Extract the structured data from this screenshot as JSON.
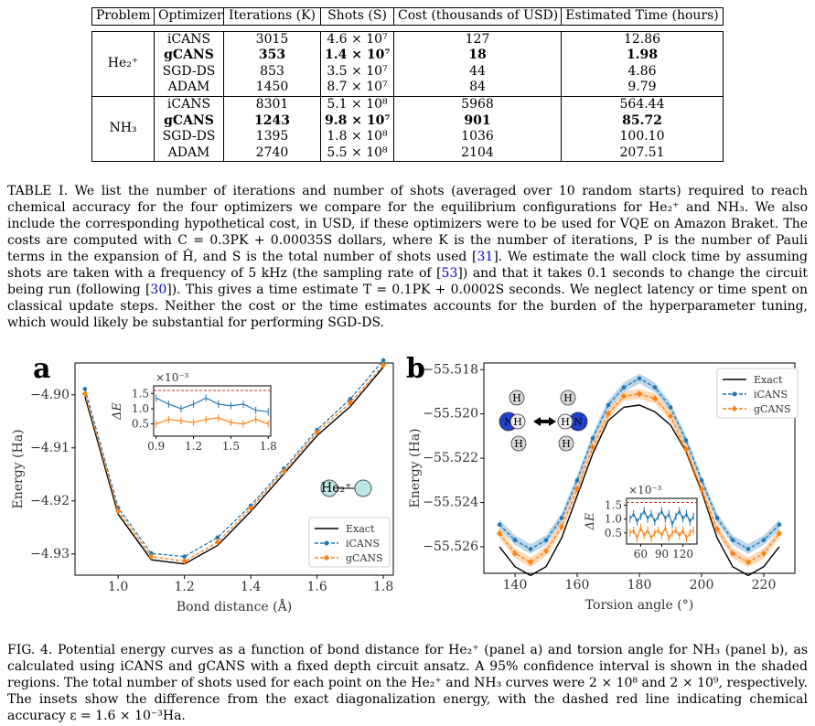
{
  "table": {
    "headers": [
      "Problem",
      "Optimizer",
      "Iterations (K)",
      "Shots (S)",
      "Cost (thousands of USD)",
      "Estimated Time (hours)"
    ],
    "groups": [
      {
        "problem": "He₂⁺",
        "rows": [
          {
            "optimizer": "iCANS",
            "iterations": "3015",
            "shots": "4.6 × 10⁷",
            "cost": "127",
            "time": "12.86",
            "bold": false
          },
          {
            "optimizer": "gCANS",
            "iterations": "353",
            "shots": "1.4 × 10⁷",
            "cost": "18",
            "time": "1.98",
            "bold": true
          },
          {
            "optimizer": "SGD-DS",
            "iterations": "853",
            "shots": "3.5 × 10⁷",
            "cost": "44",
            "time": "4.86",
            "bold": false
          },
          {
            "optimizer": "ADAM",
            "iterations": "1450",
            "shots": "8.7 × 10⁷",
            "cost": "84",
            "time": "9.79",
            "bold": false
          }
        ]
      },
      {
        "problem": "NH₃",
        "rows": [
          {
            "optimizer": "iCANS",
            "iterations": "8301",
            "shots": "5.1 × 10⁸",
            "cost": "5968",
            "time": "564.44",
            "bold": false
          },
          {
            "optimizer": "gCANS",
            "iterations": "1243",
            "shots": "9.8 × 10⁷",
            "cost": "901",
            "time": "85.72",
            "bold": true
          },
          {
            "optimizer": "SGD-DS",
            "iterations": "1395",
            "shots": "1.8 × 10⁸",
            "cost": "1036",
            "time": "100.10",
            "bold": false
          },
          {
            "optimizer": "ADAM",
            "iterations": "2740",
            "shots": "5.5 × 10⁸",
            "cost": "2104",
            "time": "207.51",
            "bold": false
          }
        ]
      }
    ]
  },
  "caption_table": {
    "p1": "TABLE I. We list the number of iterations and number of shots (averaged over 10 random starts) required to reach chemical accuracy for the four optimizers we compare for the equilibrium configurations for He₂⁺ and NH₃. We also include the corresponding hypothetical cost, in USD, if these optimizers were to be used for VQE on Amazon Braket. The costs are computed with C = 0.3PK + 0.00035S dollars, where K is the number of iterations, P is the number of Pauli terms in the expansion of Ĥ, and S is the total number of shots used [",
    "ref1": "31",
    "p2": "]. We estimate the wall clock time by assuming shots are taken with a frequency of 5 kHz (the sampling rate of [",
    "ref2": "53",
    "p3": "]) and that it takes 0.1 seconds to change the circuit being run (following [",
    "ref3": "30",
    "p4": "]). This gives a time estimate T = 0.1PK + 0.0002S seconds. We neglect latency or time spent on classical update steps. Neither the cost or the time estimates accounts for the burden of the hyperparameter tuning, which would likely be substantial for performing SGD-DS."
  },
  "caption_figure": "FIG. 4. Potential energy curves as a function of bond distance for He₂⁺ (panel a) and torsion angle for NH₃ (panel b), as calculated using iCANS and gCANS with a fixed depth circuit ansatz. A 95% confidence interval is shown in the shaded regions. The total number of shots used for each point on the He₂⁺ and NH₃ curves were 2 × 10⁸ and 2 × 10⁹, respectively. The insets show the difference from the exact diagonalization energy, with the dashed red line indicating chemical accuracy ε = 1.6 × 10⁻³Ha.",
  "colors": {
    "exact": "#000000",
    "icans": "#1f77b4",
    "gcans": "#ff7f0e",
    "chem_acc": "#d62728"
  },
  "chart_data": [
    {
      "panel_label": "a",
      "type": "line",
      "xlabel": "Bond distance (Å)",
      "ylabel": "Energy (Ha)",
      "xlim": [
        0.87,
        1.83
      ],
      "ylim": [
        -4.934,
        -4.894
      ],
      "xticks": [
        1.0,
        1.2,
        1.4,
        1.6,
        1.8
      ],
      "xtick_labels": [
        "1.0",
        "1.2",
        "1.4",
        "1.6",
        "1.8"
      ],
      "yticks": [
        -4.93,
        -4.92,
        -4.91,
        -4.9
      ],
      "ytick_labels": [
        "−4.93",
        "−4.92",
        "−4.91",
        "−4.90"
      ],
      "legend": "bottom-right",
      "legend_labels": [
        "Exact",
        "iCANS",
        "gCANS"
      ],
      "molecule_label": "He₂⁺",
      "x": [
        0.9,
        1.0,
        1.1,
        1.2,
        1.3,
        1.4,
        1.5,
        1.6,
        1.7,
        1.8
      ],
      "series": [
        {
          "name": "Exact",
          "values": [
            -4.9003,
            -4.9225,
            -4.9311,
            -4.9319,
            -4.9284,
            -4.922,
            -4.9149,
            -4.9077,
            -4.9022,
            -4.8948
          ]
        },
        {
          "name": "iCANS",
          "values": [
            -4.8989,
            -4.9213,
            -4.9299,
            -4.9305,
            -4.9269,
            -4.9209,
            -4.9139,
            -4.9066,
            -4.9008,
            -4.8935
          ]
        },
        {
          "name": "gCANS",
          "values": [
            -4.8998,
            -4.9219,
            -4.9305,
            -4.9314,
            -4.9278,
            -4.9214,
            -4.9144,
            -4.9071,
            -4.9015,
            -4.8944
          ]
        }
      ],
      "inset": {
        "ylabel": "ΔE",
        "scale_label": "×10⁻³",
        "xlim": [
          0.88,
          1.82
        ],
        "ylim": [
          0.1,
          1.75
        ],
        "xticks": [
          0.9,
          1.2,
          1.5,
          1.8
        ],
        "xtick_labels": [
          "0.9",
          "1.2",
          "1.5",
          "1.8"
        ],
        "yticks": [
          0.5,
          1.0,
          1.5
        ],
        "ytick_labels": [
          "0.5",
          "1.0",
          "1.5"
        ],
        "chem_acc": 1.6,
        "x": [
          0.9,
          1.0,
          1.1,
          1.2,
          1.3,
          1.4,
          1.5,
          1.6,
          1.7,
          1.8
        ],
        "series": [
          {
            "name": "iCANS",
            "values": [
              1.35,
              1.15,
              1.0,
              1.15,
              1.35,
              1.15,
              1.1,
              1.15,
              0.95,
              0.9
            ]
          },
          {
            "name": "gCANS",
            "values": [
              0.5,
              0.65,
              0.6,
              0.55,
              0.65,
              0.7,
              0.55,
              0.5,
              0.65,
              0.5
            ]
          }
        ]
      }
    },
    {
      "panel_label": "b",
      "type": "line",
      "xlabel": "Torsion angle (°)",
      "ylabel": "Energy (Ha)",
      "xlim": [
        130,
        230
      ],
      "ylim": [
        -55.5272,
        -55.5177
      ],
      "xticks": [
        140,
        160,
        180,
        200,
        220
      ],
      "xtick_labels": [
        "140",
        "160",
        "180",
        "200",
        "220"
      ],
      "yticks": [
        -55.526,
        -55.524,
        -55.522,
        -55.52,
        -55.518
      ],
      "ytick_labels": [
        "−55.526",
        "−55.524",
        "−55.522",
        "−55.520",
        "−55.518"
      ],
      "legend": "top-right",
      "legend_labels": [
        "Exact",
        "iCANS",
        "gCANS"
      ],
      "atom_labels": [
        "H",
        "N"
      ],
      "x": [
        135,
        140,
        145,
        150,
        155,
        160,
        165,
        170,
        175,
        180,
        185,
        190,
        195,
        200,
        205,
        210,
        215,
        220,
        225
      ],
      "series": [
        {
          "name": "Exact",
          "values": [
            -55.526,
            -55.5269,
            -55.5273,
            -55.5269,
            -55.5256,
            -55.5237,
            -55.5218,
            -55.5203,
            -55.5197,
            -55.5196,
            -55.5199,
            -55.5205,
            -55.5217,
            -55.5235,
            -55.5256,
            -55.5269,
            -55.5273,
            -55.5269,
            -55.526
          ]
        },
        {
          "name": "iCANS",
          "values": [
            -55.525,
            -55.5257,
            -55.5261,
            -55.5257,
            -55.5247,
            -55.523,
            -55.5211,
            -55.5196,
            -55.5188,
            -55.5184,
            -55.5188,
            -55.5197,
            -55.5212,
            -55.523,
            -55.5247,
            -55.5257,
            -55.5261,
            -55.5257,
            -55.525
          ]
        },
        {
          "name": "gCANS",
          "values": [
            -55.5254,
            -55.5263,
            -55.5267,
            -55.5262,
            -55.5251,
            -55.5234,
            -55.5215,
            -55.52,
            -55.5192,
            -55.5191,
            -55.5193,
            -55.5201,
            -55.5216,
            -55.5234,
            -55.5252,
            -55.5263,
            -55.5267,
            -55.5263,
            -55.5254
          ]
        }
      ],
      "inset": {
        "ylabel": "ΔE",
        "scale_label": "×10⁻³",
        "xlim": [
          40,
          140
        ],
        "ylim": [
          0.1,
          1.75
        ],
        "xticks": [
          60,
          90,
          120
        ],
        "xtick_labels": [
          "60",
          "90",
          "120"
        ],
        "yticks": [
          0.5,
          1.0,
          1.5
        ],
        "ytick_labels": [
          "0.5",
          "1.0",
          "1.5"
        ],
        "chem_acc": 1.6,
        "x": [
          45,
          50,
          55,
          60,
          65,
          70,
          75,
          80,
          85,
          90,
          95,
          100,
          105,
          110,
          115,
          120,
          125,
          130,
          135
        ],
        "series": [
          {
            "name": "iCANS",
            "values": [
              1.0,
              1.2,
              0.9,
              1.1,
              1.3,
              1.0,
              1.2,
              0.9,
              1.1,
              1.3,
              1.0,
              1.2,
              0.8,
              1.1,
              1.3,
              1.0,
              1.2,
              0.9,
              1.1
            ]
          },
          {
            "name": "gCANS",
            "values": [
              0.5,
              0.6,
              0.3,
              0.7,
              0.4,
              0.6,
              0.3,
              0.5,
              0.6,
              0.4,
              0.7,
              0.3,
              0.5,
              0.6,
              0.4,
              0.6,
              0.3,
              0.5,
              0.6
            ]
          }
        ]
      }
    }
  ]
}
